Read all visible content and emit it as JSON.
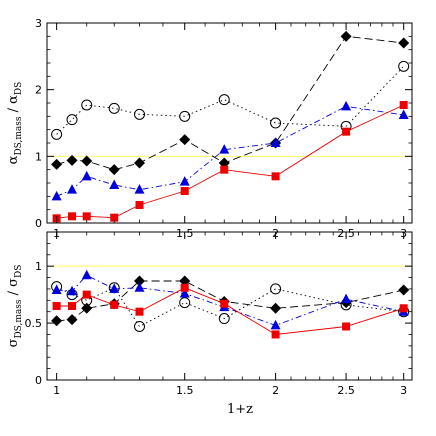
{
  "chart_data": [
    {
      "type": "line",
      "panel": "top",
      "xscale": "log",
      "xlim": [
        0.97,
        3.08
      ],
      "ylim": [
        0,
        3
      ],
      "x_ticks": [
        1,
        1.5,
        2,
        2.5,
        3
      ],
      "y_ticks": [
        0,
        1,
        2,
        3
      ],
      "xlabel": "",
      "ylabel": {
        "main": "α",
        "sub": "DS,mass",
        "den_main": "α",
        "den_sub": "DS"
      },
      "reference_line": {
        "y": 1,
        "color": "#ffff66"
      },
      "series": [
        {
          "marker": "open-circle",
          "color": "#000000",
          "line": "dotted",
          "x": [
            1.0,
            1.05,
            1.1,
            1.2,
            1.3,
            1.5,
            1.7,
            2.0,
            2.5,
            3.0
          ],
          "y": [
            1.33,
            1.55,
            1.77,
            1.72,
            1.63,
            1.6,
            1.85,
            1.5,
            1.45,
            2.35
          ]
        },
        {
          "marker": "filled-diamond",
          "color": "#000000",
          "line": "dashed",
          "x": [
            1.0,
            1.05,
            1.1,
            1.2,
            1.3,
            1.5,
            1.7,
            2.0,
            2.5,
            3.0
          ],
          "y": [
            0.88,
            0.94,
            0.93,
            0.8,
            0.9,
            1.25,
            0.9,
            1.2,
            2.8,
            2.7
          ]
        },
        {
          "marker": "filled-triangle",
          "color": "#0000dd",
          "line": "dash-dot",
          "x": [
            1.0,
            1.05,
            1.1,
            1.2,
            1.3,
            1.5,
            1.7,
            2.0,
            2.5,
            3.0
          ],
          "y": [
            0.4,
            0.5,
            0.7,
            0.57,
            0.5,
            0.62,
            1.1,
            1.2,
            1.75,
            1.62
          ]
        },
        {
          "marker": "filled-square",
          "color": "#ee0000",
          "line": "solid",
          "x": [
            1.0,
            1.05,
            1.1,
            1.2,
            1.3,
            1.5,
            1.7,
            2.0,
            2.5,
            3.0
          ],
          "y": [
            0.07,
            0.1,
            0.1,
            0.08,
            0.27,
            0.48,
            0.8,
            0.7,
            1.37,
            1.77
          ]
        }
      ]
    },
    {
      "type": "line",
      "panel": "bottom",
      "xscale": "log",
      "xlim": [
        0.97,
        3.08
      ],
      "ylim": [
        0,
        1.3
      ],
      "x_ticks": [
        1,
        1.5,
        2,
        2.5,
        3
      ],
      "y_ticks": [
        0,
        0.5,
        1
      ],
      "xlabel": "1+z",
      "ylabel": {
        "main": "σ",
        "sub": "DS,mass",
        "den_main": "σ",
        "den_sub": "DS"
      },
      "reference_line": {
        "y": 1,
        "color": "#ffff66"
      },
      "series": [
        {
          "marker": "open-circle",
          "color": "#000000",
          "line": "dotted",
          "x": [
            1.0,
            1.05,
            1.1,
            1.2,
            1.3,
            1.5,
            1.7,
            2.0,
            2.5,
            3.0
          ],
          "y": [
            0.82,
            0.75,
            0.7,
            0.81,
            0.47,
            0.68,
            0.54,
            0.8,
            0.66,
            0.6
          ]
        },
        {
          "marker": "filled-diamond",
          "color": "#000000",
          "line": "dashed",
          "x": [
            1.0,
            1.05,
            1.1,
            1.2,
            1.3,
            1.5,
            1.7,
            2.0,
            2.5,
            3.0
          ],
          "y": [
            0.52,
            0.53,
            0.63,
            0.67,
            0.87,
            0.87,
            0.69,
            0.63,
            0.68,
            0.79
          ]
        },
        {
          "marker": "filled-triangle",
          "color": "#0000dd",
          "line": "dash-dot",
          "x": [
            1.0,
            1.05,
            1.1,
            1.2,
            1.3,
            1.5,
            1.7,
            2.0,
            2.5,
            3.0
          ],
          "y": [
            0.79,
            0.78,
            0.92,
            0.8,
            0.81,
            0.76,
            0.64,
            0.48,
            0.71,
            0.6
          ]
        },
        {
          "marker": "filled-square",
          "color": "#ee0000",
          "line": "solid",
          "x": [
            1.0,
            1.05,
            1.1,
            1.2,
            1.3,
            1.5,
            1.7,
            2.0,
            2.5,
            3.0
          ],
          "y": [
            0.65,
            0.65,
            0.75,
            0.66,
            0.6,
            0.81,
            0.67,
            0.4,
            0.47,
            0.63
          ]
        }
      ]
    }
  ]
}
